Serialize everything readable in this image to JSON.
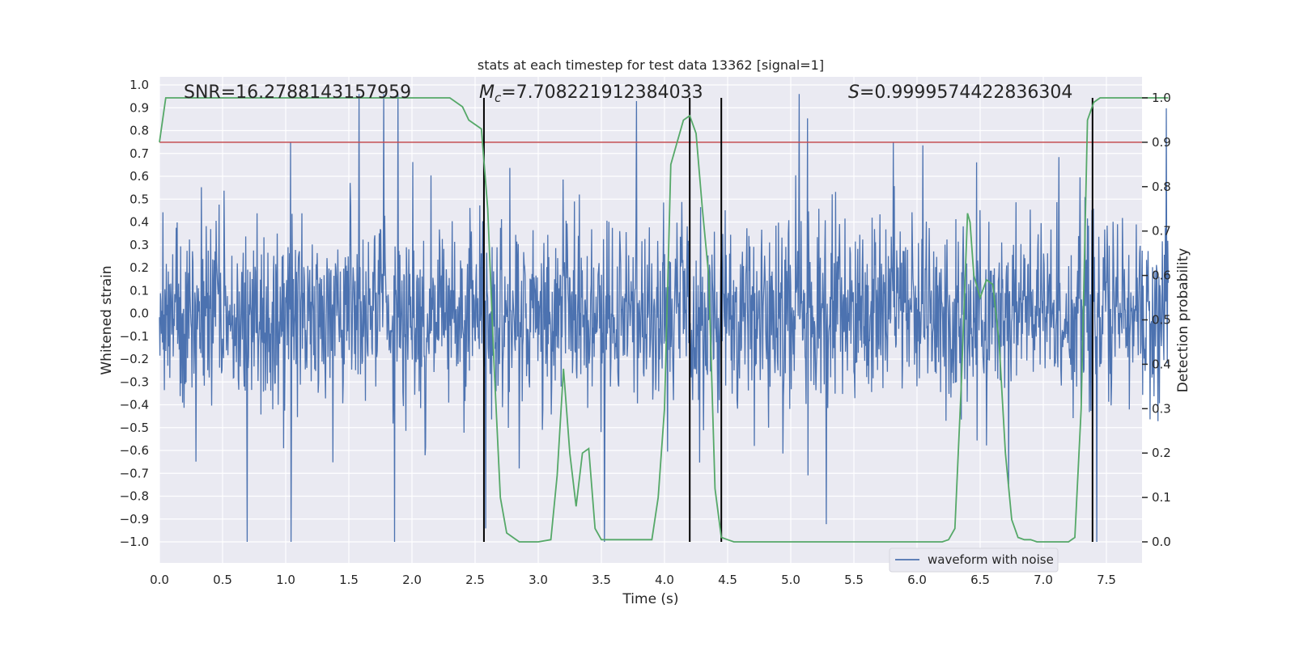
{
  "chart_data": {
    "type": "line",
    "title": "stats at each timestep for test data 13362 [signal=1]",
    "xlabel": "Time (s)",
    "ylabel": "Whitened strain",
    "y2label": "Detection probability",
    "xlim": [
      0.0,
      8.0
    ],
    "ylim": [
      -1.1,
      1.05
    ],
    "y2lim": [
      -0.05,
      1.03
    ],
    "xticks": [
      "0.0",
      "0.5",
      "1.0",
      "1.5",
      "2.0",
      "2.5",
      "3.0",
      "3.5",
      "4.0",
      "4.5",
      "5.0",
      "5.5",
      "6.0",
      "6.5",
      "7.0",
      "7.5"
    ],
    "xtick_values": [
      0.0,
      0.5,
      1.0,
      1.5,
      2.0,
      2.5,
      3.0,
      3.5,
      4.0,
      4.5,
      5.0,
      5.5,
      6.0,
      6.5,
      7.0,
      7.5
    ],
    "yticks": [
      "1.0",
      "0.9",
      "0.8",
      "0.7",
      "0.6",
      "0.5",
      "0.4",
      "0.3",
      "0.2",
      "0.1",
      "0.0",
      "−0.1",
      "−0.2",
      "−0.3",
      "−0.4",
      "−0.5",
      "−0.6",
      "−0.7",
      "−0.8",
      "−0.9",
      "−1.0"
    ],
    "ytick_values": [
      1.0,
      0.9,
      0.8,
      0.7,
      0.6,
      0.5,
      0.4,
      0.3,
      0.2,
      0.1,
      0.0,
      -0.1,
      -0.2,
      -0.3,
      -0.4,
      -0.5,
      -0.6,
      -0.7,
      -0.8,
      -0.9,
      -1.0
    ],
    "y2ticks": [
      "1.0",
      "0.9",
      "0.8",
      "0.7",
      "0.6",
      "0.5",
      "0.4",
      "0.3",
      "0.2",
      "0.1",
      "0.0"
    ],
    "y2tick_values": [
      1.0,
      0.9,
      0.8,
      0.7,
      0.6,
      0.5,
      0.4,
      0.3,
      0.2,
      0.1,
      0.0
    ],
    "annotations": {
      "snr": "SNR=16.2788143157959",
      "mc_prefix": "M",
      "mc_sub": "c",
      "mc_value": "=7.708221912384033",
      "s_prefix": "S",
      "s_value": "=0.9999574422836304"
    },
    "series": [
      {
        "name": "waveform with noise",
        "kind": "noise-strain",
        "color": "#4c72b0",
        "x_range": [
          0.0,
          7.99
        ],
        "typical_range": [
          -0.3,
          0.35
        ],
        "peak_range": [
          -1.0,
          0.96
        ],
        "n_samples": 2048
      },
      {
        "kind": "detection-probability",
        "color": "#55a868",
        "axis": "right",
        "x": [
          0.0,
          0.05,
          0.2,
          0.5,
          1.0,
          1.5,
          2.0,
          2.3,
          2.4,
          2.45,
          2.55,
          2.6,
          2.65,
          2.7,
          2.75,
          2.8,
          2.85,
          2.9,
          3.0,
          3.1,
          3.15,
          3.2,
          3.25,
          3.3,
          3.35,
          3.4,
          3.45,
          3.5,
          3.55,
          3.6,
          3.7,
          3.8,
          3.9,
          3.95,
          4.0,
          4.05,
          4.1,
          4.15,
          4.2,
          4.25,
          4.3,
          4.35,
          4.4,
          4.45,
          4.5,
          4.55,
          4.6,
          4.65,
          4.7,
          5.0,
          5.5,
          6.0,
          6.2,
          6.25,
          6.3,
          6.35,
          6.4,
          6.42,
          6.45,
          6.5,
          6.55,
          6.6,
          6.65,
          6.7,
          6.75,
          6.8,
          6.85,
          6.9,
          6.95,
          7.0,
          7.1,
          7.2,
          7.25,
          7.3,
          7.35,
          7.4,
          7.45,
          7.5,
          7.6,
          7.99
        ],
        "y": [
          0.9,
          1.0,
          1.0,
          1.0,
          1.0,
          1.0,
          1.0,
          1.0,
          0.98,
          0.95,
          0.93,
          0.75,
          0.4,
          0.1,
          0.02,
          0.01,
          0.0,
          0.0,
          0.0,
          0.005,
          0.15,
          0.39,
          0.2,
          0.08,
          0.2,
          0.21,
          0.03,
          0.005,
          0.005,
          0.005,
          0.005,
          0.005,
          0.005,
          0.1,
          0.3,
          0.85,
          0.9,
          0.95,
          0.96,
          0.92,
          0.75,
          0.6,
          0.12,
          0.01,
          0.005,
          0.0,
          0.0,
          0.0,
          0.0,
          0.0,
          0.0,
          0.0,
          0.0,
          0.005,
          0.03,
          0.35,
          0.74,
          0.72,
          0.6,
          0.55,
          0.59,
          0.58,
          0.45,
          0.2,
          0.05,
          0.01,
          0.005,
          0.005,
          0.0,
          0.0,
          0.0,
          0.0,
          0.01,
          0.3,
          0.95,
          0.99,
          1.0,
          1.0,
          1.0,
          1.0
        ]
      }
    ],
    "threshold": {
      "value": 0.9,
      "axis": "right",
      "color": "#c44e52"
    },
    "vlines": [
      2.57,
      4.2,
      4.45,
      7.39
    ],
    "vline_ymax": 1.0,
    "grid": true,
    "background": "#eaeaf2",
    "legend": {
      "location": "lower-right",
      "entries": [
        "waveform with noise"
      ]
    }
  }
}
